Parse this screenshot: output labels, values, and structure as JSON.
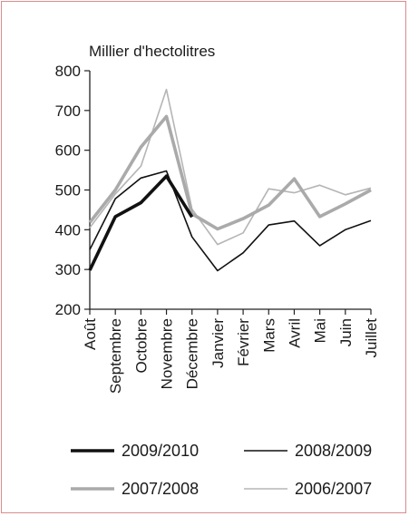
{
  "chart_data": {
    "type": "line",
    "title": "",
    "ylabel": "Millier d'hectolitres",
    "xlabel": "",
    "ylim": [
      200,
      800
    ],
    "yticks": [
      200,
      300,
      400,
      500,
      600,
      700,
      800
    ],
    "grid": false,
    "legend_position": "bottom",
    "categories": [
      "Août",
      "Septembre",
      "Octobre",
      "Novembre",
      "Décembre",
      "Janvier",
      "Février",
      "Mars",
      "Avril",
      "Mai",
      "Juin",
      "Juillet"
    ],
    "series": [
      {
        "name": "2009/2010",
        "color": "#111111",
        "width": "thick",
        "values": [
          298,
          433,
          468,
          535,
          432,
          null,
          null,
          null,
          null,
          null,
          null,
          null
        ]
      },
      {
        "name": "2008/2009",
        "color": "#111111",
        "width": "thin",
        "values": [
          350,
          478,
          530,
          548,
          382,
          297,
          342,
          412,
          422,
          360,
          400,
          423
        ]
      },
      {
        "name": "2007/2008",
        "color": "#aaaaaa",
        "width": "thick",
        "values": [
          418,
          500,
          608,
          685,
          440,
          402,
          428,
          462,
          528,
          433,
          465,
          500
        ]
      },
      {
        "name": "2006/2007",
        "color": "#b5b5b5",
        "width": "thin",
        "values": [
          405,
          490,
          560,
          753,
          452,
          363,
          392,
          503,
          493,
          512,
          488,
          505
        ]
      }
    ]
  }
}
